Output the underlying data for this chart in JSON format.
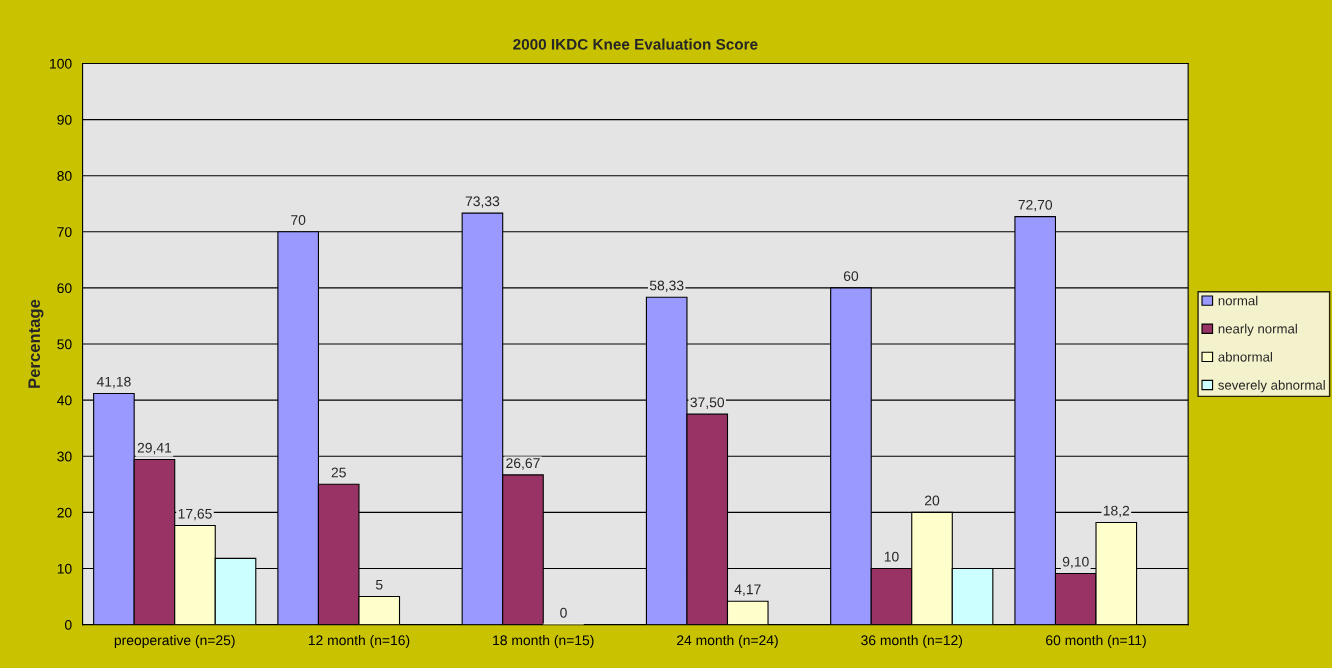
{
  "chart_data": {
    "type": "bar",
    "title": "2000 IKDC Knee Evaluation Score",
    "ylabel": "Percentage",
    "categories": [
      "preoperative (n=25)",
      "12 month (n=16)",
      "18 month (n=15)",
      "24 month (n=24)",
      "36 month (n=12)",
      "60 month (n=11)"
    ],
    "series": [
      {
        "name": "normal",
        "color": "#9999ff",
        "values": [
          41.18,
          70,
          73.33,
          58.33,
          60,
          72.7
        ],
        "value_labels": [
          "41,18",
          "70",
          "73,33",
          "58,33",
          "60",
          "72,70"
        ]
      },
      {
        "name": "nearly normal",
        "color": "#993366",
        "values": [
          29.41,
          25,
          26.67,
          37.5,
          10,
          9.1
        ],
        "value_labels": [
          "29,41",
          "25",
          "26,67",
          "37,50",
          "10",
          "9,10"
        ]
      },
      {
        "name": "abnormal",
        "color": "#ffffcc",
        "values": [
          17.65,
          5,
          0,
          4.17,
          20,
          18.2
        ],
        "value_labels": [
          "17,65",
          "5",
          "0",
          "4,17",
          "20",
          "18,2"
        ]
      },
      {
        "name": "severely abnormal",
        "color": "#ccffff",
        "values": [
          11.8,
          null,
          null,
          null,
          10,
          null
        ],
        "value_labels": [
          null,
          null,
          null,
          null,
          null,
          null
        ]
      }
    ],
    "ylim": [
      0,
      100
    ],
    "yticks": [
      0,
      10,
      20,
      30,
      40,
      50,
      60,
      70,
      80,
      90,
      100
    ],
    "grid": "y",
    "legend": "right"
  }
}
